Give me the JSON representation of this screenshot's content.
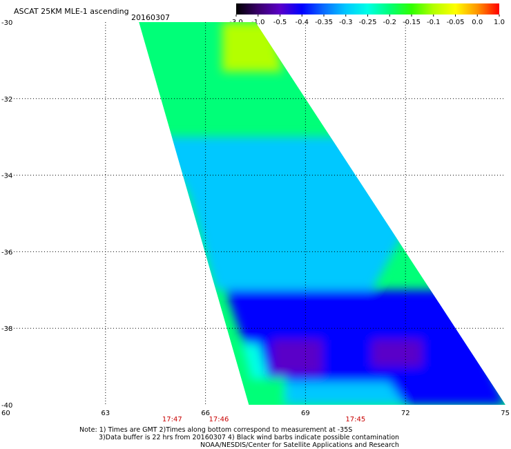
{
  "chart_data": {
    "type": "heatmap",
    "title": "ASCAT 25KM MLE-1 ascending",
    "date": "20160307",
    "x_ticks": [
      "60",
      "63",
      "66",
      "69",
      "72",
      "75"
    ],
    "y_ticks": [
      "-30",
      "-32",
      "-34",
      "-36",
      "-38",
      "-40"
    ],
    "xlim": [
      60,
      75
    ],
    "ylim": [
      -40,
      -30
    ],
    "grid": true,
    "colorbar": {
      "placement": "top-right",
      "labels": [
        "-3.0",
        "-1.0",
        "-0.5",
        "-0.4",
        "-0.35",
        "-0.3",
        "-0.25",
        "-0.2",
        "-0.15",
        "-0.1",
        "-0.05",
        "0.0",
        "1.0"
      ],
      "colors": [
        "#000000",
        "#3a006a",
        "#5a00c8",
        "#0000ff",
        "#0a6cff",
        "#00c8ff",
        "#00ffe6",
        "#00ff78",
        "#30ff00",
        "#b4ff00",
        "#ffff00",
        "#ff9600",
        "#ff0000"
      ]
    },
    "swath_times": [
      {
        "label": "17:47",
        "lon": 65.0
      },
      {
        "label": "17:46",
        "lon": 66.4
      },
      {
        "label": "17:45",
        "lon": 70.5
      }
    ],
    "swath": {
      "corners": [
        [
          64.0,
          -30.0
        ],
        [
          67.5,
          -30.0
        ],
        [
          75.0,
          -40.0
        ],
        [
          67.3,
          -40.0
        ]
      ],
      "regions": [
        {
          "label": "-0.1",
          "polygon": [
            [
              66.5,
              -30.0
            ],
            [
              68.0,
              -30.0
            ],
            [
              68.3,
              -31.3
            ],
            [
              66.5,
              -31.3
            ]
          ]
        },
        {
          "label": "-0.1",
          "polygon": [
            [
              64.4,
              -34.0
            ],
            [
              64.6,
              -34.0
            ],
            [
              64.6,
              -34.4
            ],
            [
              64.4,
              -34.4
            ]
          ]
        },
        {
          "label": "-0.3",
          "polygon": [
            [
              64.5,
              -33.0
            ],
            [
              71.8,
              -33.0
            ],
            [
              72.6,
              -34.5
            ],
            [
              71.0,
              -37.0
            ],
            [
              66.3,
              -37.0
            ],
            [
              65.5,
              -34.5
            ]
          ]
        },
        {
          "label": "-0.4",
          "polygon": [
            [
              66.6,
              -37.0
            ],
            [
              73.5,
              -37.0
            ],
            [
              75.0,
              -40.0
            ],
            [
              67.8,
              -40.0
            ]
          ]
        },
        {
          "label": "-0.5",
          "polygon": [
            [
              68.0,
              -38.3
            ],
            [
              69.5,
              -38.3
            ],
            [
              69.5,
              -39.2
            ],
            [
              68.0,
              -39.2
            ]
          ]
        },
        {
          "label": "-0.5",
          "polygon": [
            [
              71.0,
              -38.3
            ],
            [
              72.5,
              -38.3
            ],
            [
              72.5,
              -39.0
            ],
            [
              71.0,
              -39.0
            ]
          ]
        },
        {
          "label": "-0.25",
          "polygon": [
            [
              67.1,
              -38.4
            ],
            [
              67.6,
              -38.4
            ],
            [
              67.9,
              -39.4
            ],
            [
              67.4,
              -39.4
            ]
          ]
        },
        {
          "label": "-0.2",
          "polygon": [
            [
              67.3,
              -39.3
            ],
            [
              68.4,
              -39.3
            ],
            [
              68.6,
              -40.0
            ],
            [
              67.3,
              -40.0
            ]
          ]
        },
        {
          "label": "-0.3",
          "polygon": [
            [
              68.4,
              -39.4
            ],
            [
              71.5,
              -39.4
            ],
            [
              72.0,
              -40.0
            ],
            [
              68.4,
              -40.0
            ]
          ]
        }
      ]
    },
    "footer": [
      "Note: 1) Times are GMT 2)Times along bottom correspond to measurement at -35S",
      "3)Data buffer is 22 hrs from 20160307 4) Black wind barbs indicate possible contamination",
      "NOAA/NESDIS/Center for Satellite Applications and Research"
    ]
  }
}
